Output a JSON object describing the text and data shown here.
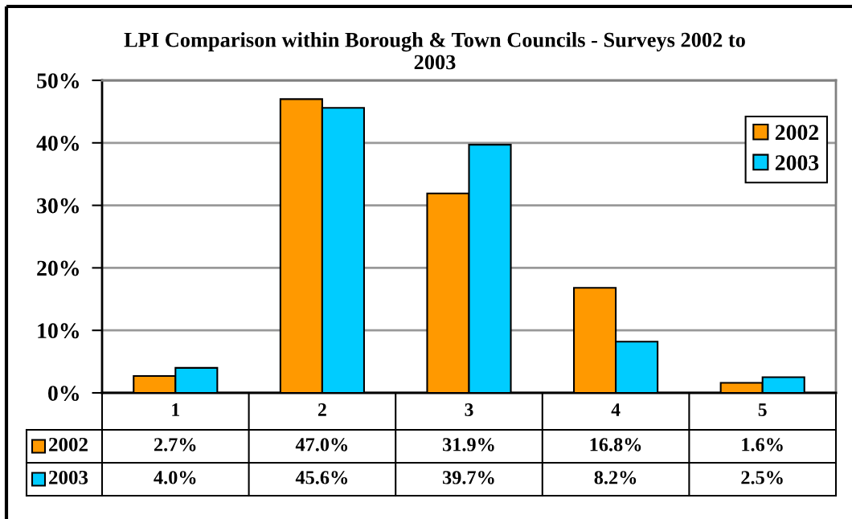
{
  "chart_data": {
    "type": "bar",
    "title": "LPI Comparison within Borough & Town Councils - Surveys 2002 to 2003",
    "categories": [
      "1",
      "2",
      "3",
      "4",
      "5"
    ],
    "series": [
      {
        "name": "2002",
        "color": "#ff9900",
        "values": [
          2.7,
          47.0,
          31.9,
          16.8,
          1.6
        ],
        "value_labels": [
          "2.7%",
          "47.0%",
          "31.9%",
          "16.8%",
          "1.6%"
        ]
      },
      {
        "name": "2003",
        "color": "#00ccff",
        "values": [
          4.0,
          45.6,
          39.7,
          8.2,
          2.5
        ],
        "value_labels": [
          "4.0%",
          "45.6%",
          "39.7%",
          "8.2%",
          "2.5%"
        ]
      }
    ],
    "ylim": [
      0,
      50
    ],
    "yticks": [
      {
        "value": 0,
        "label": "0%"
      },
      {
        "value": 10,
        "label": "10%"
      },
      {
        "value": 20,
        "label": "20%"
      },
      {
        "value": 30,
        "label": "30%"
      },
      {
        "value": 40,
        "label": "40%"
      },
      {
        "value": 50,
        "label": "50%"
      }
    ],
    "grid": "y",
    "legend": "top right"
  }
}
